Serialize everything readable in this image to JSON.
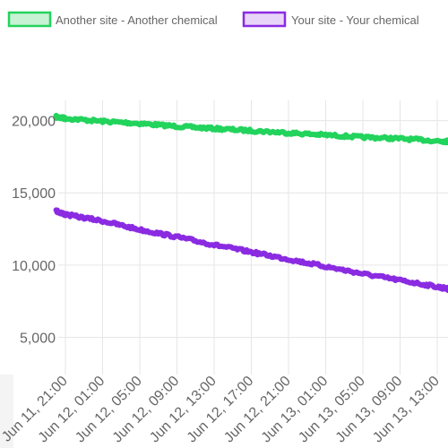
{
  "chart_data": {
    "type": "line",
    "title": "",
    "xlabel": "",
    "ylabel": "",
    "x_ticks": [
      "Jun 11, 21:00",
      "Jun 12, 01:00",
      "Jun 12, 05:00",
      "Jun 12, 09:00",
      "Jun 12, 13:00",
      "Jun 12, 17:00",
      "Jun 12, 21:00",
      "Jun 13, 01:00",
      "Jun 13, 05:00",
      "Jun 13, 09:00",
      "Jun 13, 13:00"
    ],
    "y_ticks": [
      "5,000",
      "10,000",
      "15,000",
      "20,000"
    ],
    "y_tick_values": [
      5000,
      10000,
      15000,
      20000
    ],
    "ylim": [
      2800,
      21400
    ],
    "grid": true,
    "legend_position": "top",
    "x_hours": [
      0,
      4,
      8,
      12,
      16,
      20,
      24,
      28,
      32,
      36,
      40
    ],
    "series": [
      {
        "name": "Another site - Another chemical",
        "color": "#22d35c",
        "fill": "#c8f2d4",
        "x": [
          -1,
          0,
          4,
          8,
          12,
          16,
          20,
          24,
          28,
          32,
          36,
          40,
          41.5
        ],
        "values": [
          20250,
          20150,
          19950,
          19800,
          19600,
          19450,
          19300,
          19150,
          19000,
          18850,
          18750,
          18600,
          18550
        ]
      },
      {
        "name": "Your site - Your chemical",
        "color": "#8a2be2",
        "fill": "#e8d4f8",
        "x": [
          -1,
          0,
          4,
          8,
          12,
          16,
          20,
          24,
          28,
          32,
          36,
          40,
          41.5
        ],
        "values": [
          13750,
          13500,
          13050,
          12450,
          11950,
          11400,
          10900,
          10400,
          9900,
          9400,
          8950,
          8500,
          8300
        ]
      }
    ]
  }
}
